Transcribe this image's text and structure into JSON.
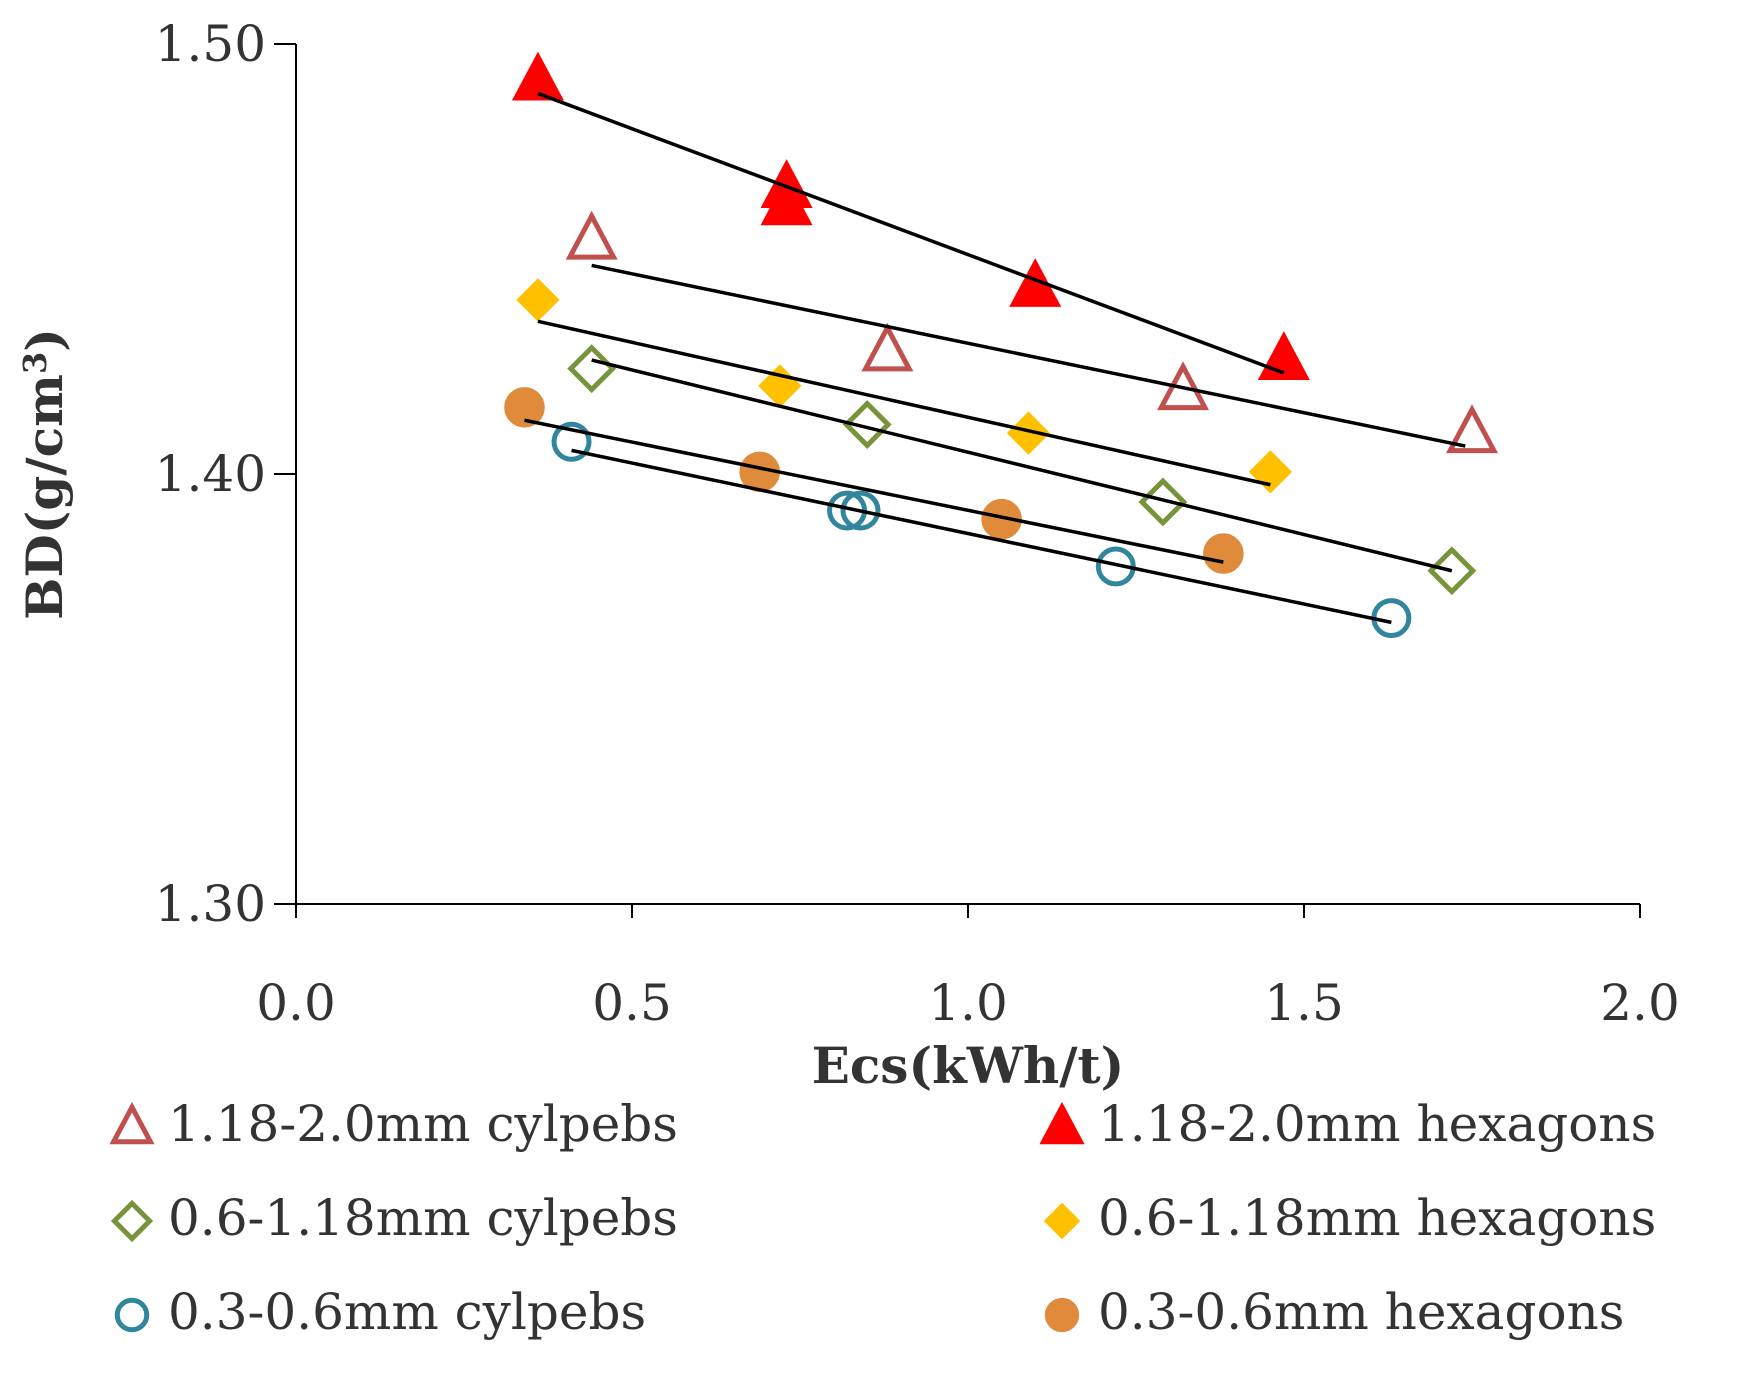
{
  "chart_data": {
    "type": "scatter",
    "xlabel": "Ecs(kWh/t)",
    "ylabel": {
      "main": "BD(g/cm",
      "superscript": "3",
      "close": ")"
    },
    "xlim": [
      0,
      2.0
    ],
    "ylim": [
      1.3,
      1.5
    ],
    "x_ticks": [
      {
        "value": 0.0,
        "label": "0.0"
      },
      {
        "value": 0.5,
        "label": "0.5"
      },
      {
        "value": 1.0,
        "label": "1.0"
      },
      {
        "value": 1.5,
        "label": "1.5"
      },
      {
        "value": 2.0,
        "label": "2.0"
      }
    ],
    "y_ticks": [
      {
        "value": 1.3,
        "label": "1.30"
      },
      {
        "value": 1.4,
        "label": "1.40"
      },
      {
        "value": 1.5,
        "label": "1.50"
      }
    ],
    "grid": false,
    "legend_position": "bottom",
    "series": [
      {
        "name": "1.18-2.0mm cylpebs",
        "marker": "triangle",
        "filled": false,
        "color": "#C0504D",
        "points": [
          [
            0.44,
            1.4545
          ],
          [
            0.88,
            1.4285
          ],
          [
            1.32,
            1.4195
          ],
          [
            1.75,
            1.4095
          ]
        ],
        "trend": [
          [
            0.44,
            1.4485
          ],
          [
            1.74,
            1.4065
          ]
        ]
      },
      {
        "name": "1.18-2.0mm hexagons",
        "marker": "triangle",
        "filled": true,
        "color": "#FF0000",
        "points": [
          [
            0.36,
            1.4915
          ],
          [
            0.73,
            1.4665
          ],
          [
            0.73,
            1.4625
          ],
          [
            1.1,
            1.4435
          ],
          [
            1.47,
            1.4265
          ]
        ],
        "trend": [
          [
            0.36,
            1.4885
          ],
          [
            1.47,
            1.4235
          ]
        ]
      },
      {
        "name": "0.6-1.18mm cylpebs",
        "marker": "diamond",
        "filled": false,
        "color": "#77933C",
        "points": [
          [
            0.44,
            1.4245
          ],
          [
            0.85,
            1.4115
          ],
          [
            1.29,
            1.3935
          ],
          [
            1.72,
            1.3775
          ]
        ],
        "trend": [
          [
            0.44,
            1.4265
          ],
          [
            1.72,
            1.3775
          ]
        ]
      },
      {
        "name": "0.6-1.18mm hexagons",
        "marker": "diamond",
        "filled": true,
        "color": "#FFC000",
        "points": [
          [
            0.36,
            1.4405
          ],
          [
            0.72,
            1.4205
          ],
          [
            1.09,
            1.4095
          ],
          [
            1.45,
            1.4005
          ]
        ],
        "trend": [
          [
            0.36,
            1.4355
          ],
          [
            1.45,
            1.3975
          ]
        ]
      },
      {
        "name": "0.3-0.6mm cylpebs",
        "marker": "circle",
        "filled": false,
        "color": "#31859C",
        "points": [
          [
            0.41,
            1.4075
          ],
          [
            0.82,
            1.3915
          ],
          [
            0.84,
            1.3915
          ],
          [
            1.22,
            1.3785
          ],
          [
            1.63,
            1.3665
          ]
        ],
        "trend": [
          [
            0.41,
            1.4055
          ],
          [
            1.63,
            1.3655
          ]
        ]
      },
      {
        "name": "0.3-0.6mm hexagons",
        "marker": "circle",
        "filled": true,
        "color": "#E08A3C",
        "points": [
          [
            0.34,
            1.4155
          ],
          [
            0.69,
            1.4005
          ],
          [
            1.05,
            1.3895
          ],
          [
            1.38,
            1.3815
          ]
        ],
        "trend": [
          [
            0.34,
            1.4125
          ],
          [
            1.38,
            1.3795
          ]
        ]
      }
    ]
  }
}
